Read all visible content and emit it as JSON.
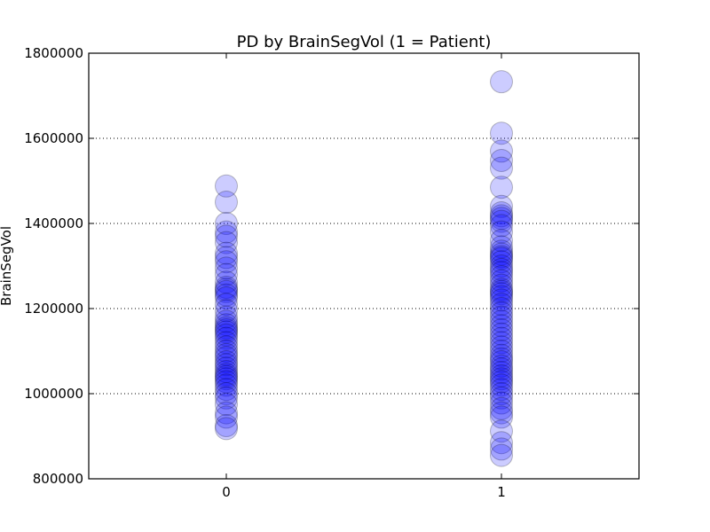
{
  "chart_data": {
    "type": "scatter",
    "title": "PD by BrainSegVol (1 = Patient)",
    "xlabel": "",
    "ylabel": "BrainSegVol",
    "categories": [
      "0",
      "1"
    ],
    "xlim": [
      -0.5,
      1.5
    ],
    "ylim": [
      800000,
      1800000
    ],
    "yticks": [
      "800000",
      "1000000",
      "1200000",
      "1400000",
      "1600000",
      "1800000"
    ],
    "grid": {
      "y": true,
      "x": false,
      "style": "dotted"
    },
    "marker_color": "#0000ff",
    "marker_alpha": 0.2,
    "series": [
      {
        "x": 0,
        "values": [
          1488000,
          1450000,
          1400000,
          1380000,
          1370000,
          1355000,
          1330000,
          1320000,
          1310000,
          1295000,
          1280000,
          1262000,
          1250000,
          1245000,
          1240000,
          1232000,
          1225000,
          1210000,
          1195000,
          1180000,
          1170000,
          1162000,
          1155000,
          1150000,
          1145000,
          1138000,
          1130000,
          1120000,
          1110000,
          1100000,
          1092000,
          1085000,
          1075000,
          1068000,
          1060000,
          1052000,
          1045000,
          1040000,
          1035000,
          1028000,
          1020000,
          1010000,
          1000000,
          990000,
          975000,
          955000,
          945000,
          925000,
          918000
        ]
      },
      {
        "x": 1,
        "values": [
          1733000,
          1612000,
          1570000,
          1548000,
          1530000,
          1485000,
          1440000,
          1425000,
          1418000,
          1412000,
          1405000,
          1395000,
          1380000,
          1360000,
          1345000,
          1335000,
          1328000,
          1322000,
          1318000,
          1310000,
          1300000,
          1292000,
          1285000,
          1275000,
          1265000,
          1255000,
          1245000,
          1240000,
          1235000,
          1228000,
          1220000,
          1210000,
          1200000,
          1190000,
          1180000,
          1170000,
          1160000,
          1150000,
          1140000,
          1130000,
          1120000,
          1110000,
          1100000,
          1090000,
          1082000,
          1075000,
          1065000,
          1058000,
          1050000,
          1042000,
          1035000,
          1028000,
          1020000,
          1010000,
          1000000,
          990000,
          978000,
          965000,
          955000,
          945000,
          912000,
          885000,
          870000,
          855000
        ]
      }
    ]
  }
}
